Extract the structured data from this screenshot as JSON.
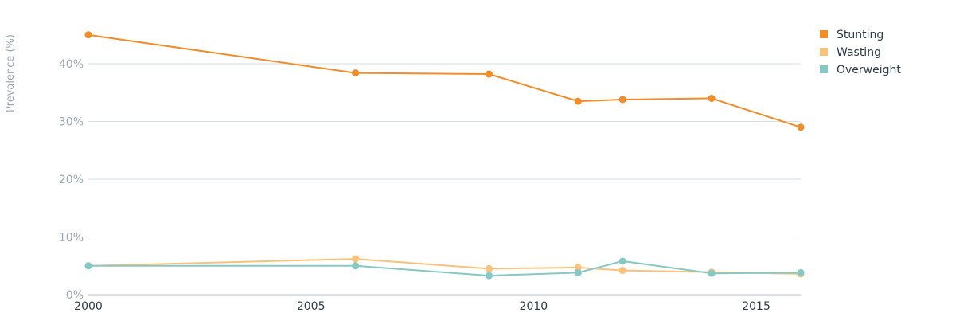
{
  "chart_data": {
    "type": "line",
    "ylabel": "Prevalence (%)",
    "xlabel": "",
    "xlim": [
      2000,
      2016
    ],
    "ylim": [
      0,
      48
    ],
    "y_ticks": [
      0,
      10,
      20,
      30,
      40
    ],
    "y_tick_labels": [
      "0%",
      "10%",
      "20%",
      "30%",
      "40%"
    ],
    "x_ticks": [
      2000,
      2005,
      2010,
      2015
    ],
    "x_tick_labels": [
      "2000",
      "2005",
      "2010",
      "2015"
    ],
    "grid": "horizontal",
    "legend": "top-right",
    "series": [
      {
        "name": "Stunting",
        "color": "#f28c28",
        "points": [
          [
            2000,
            45.0
          ],
          [
            2006,
            38.4
          ],
          [
            2009,
            38.2
          ],
          [
            2011,
            33.5
          ],
          [
            2012,
            33.8
          ],
          [
            2014,
            34.0
          ],
          [
            2016,
            29.0
          ]
        ]
      },
      {
        "name": "Wasting",
        "color": "#f9c27a",
        "points": [
          [
            2000,
            5.0
          ],
          [
            2006,
            6.2
          ],
          [
            2009,
            4.5
          ],
          [
            2011,
            4.7
          ],
          [
            2012,
            4.2
          ],
          [
            2014,
            3.9
          ],
          [
            2016,
            3.6
          ]
        ]
      },
      {
        "name": "Overweight",
        "color": "#86c8c3",
        "points": [
          [
            2000,
            5.0
          ],
          [
            2006,
            5.0
          ],
          [
            2009,
            3.3
          ],
          [
            2011,
            3.8
          ],
          [
            2012,
            5.8
          ],
          [
            2014,
            3.7
          ],
          [
            2016,
            3.8
          ]
        ]
      }
    ]
  }
}
